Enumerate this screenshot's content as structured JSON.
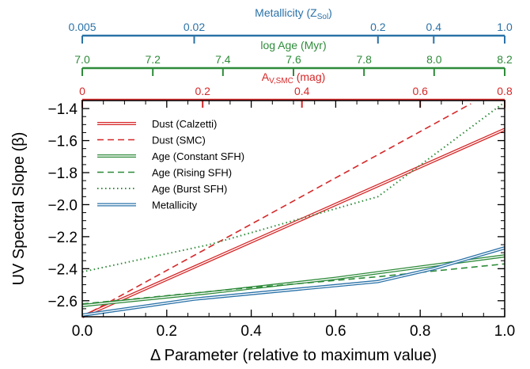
{
  "chart_data": {
    "type": "line",
    "xlabel": "Δ Parameter (relative to maximum value)",
    "ylabel": "UV Spectral Slope (β)",
    "xlim": [
      0,
      1
    ],
    "ylim": [
      -2.7,
      -1.35
    ],
    "x_ticks": [
      "0.0",
      "0.2",
      "0.4",
      "0.6",
      "0.8",
      "1.0"
    ],
    "y_ticks": [
      "-1.4",
      "-1.6",
      "-1.8",
      "-2.0",
      "-2.2",
      "-2.4",
      "-2.6"
    ],
    "grid": false,
    "legend_position": "top-left",
    "top_axes": [
      {
        "label_main": "Metallicity (Z",
        "label_sub": "Sol",
        "label_end": ")",
        "color": "#2a72a8",
        "ticks": [
          {
            "label": "0.005",
            "x": 0.0
          },
          {
            "label": "0.02",
            "x": 0.265
          },
          {
            "label": "0.2",
            "x": 0.7
          },
          {
            "label": "0.4",
            "x": 0.832
          },
          {
            "label": "1.0",
            "x": 1.0
          }
        ]
      },
      {
        "label_main": "log Age (Myr)",
        "color": "#2e8b3a",
        "ticks": [
          {
            "label": "7.0",
            "x": 0.0
          },
          {
            "label": "7.2",
            "x": 0.167
          },
          {
            "label": "7.4",
            "x": 0.333
          },
          {
            "label": "7.6",
            "x": 0.5
          },
          {
            "label": "7.8",
            "x": 0.667
          },
          {
            "label": "8.0",
            "x": 0.833
          },
          {
            "label": "8.2",
            "x": 1.0
          }
        ]
      },
      {
        "label_main": "A",
        "label_sub": "V,SMC",
        "label_end": " (mag)",
        "color": "#d62728",
        "ticks": [
          {
            "label": "0",
            "x": 0.0
          },
          {
            "label": "0.2",
            "x": 0.285
          },
          {
            "label": "0.4",
            "x": 0.52
          },
          {
            "label": "0.6",
            "x": 0.8
          },
          {
            "label": "0.8",
            "x": 1.0
          }
        ]
      }
    ],
    "series": [
      {
        "name": "Dust (Calzetti)",
        "color": "#d62728",
        "style": "double",
        "x": [
          0,
          1
        ],
        "y": [
          -2.7,
          -1.53
        ]
      },
      {
        "name": "Dust (SMC)",
        "color": "#d62728",
        "style": "dashed",
        "x": [
          0,
          0.92
        ],
        "y": [
          -2.7,
          -1.37
        ]
      },
      {
        "name": "Age (Constant SFH)",
        "color": "#2e8b3a",
        "style": "double",
        "x": [
          0,
          0.3,
          0.6,
          1.0
        ],
        "y": [
          -2.63,
          -2.55,
          -2.46,
          -2.32
        ]
      },
      {
        "name": "Age (Rising SFH)",
        "color": "#2e8b3a",
        "style": "dashed",
        "x": [
          0,
          0.35,
          0.7,
          1.0
        ],
        "y": [
          -2.62,
          -2.53,
          -2.45,
          -2.37
        ]
      },
      {
        "name": "Age (Burst SFH)",
        "color": "#2e8b3a",
        "style": "dotted",
        "x": [
          0,
          0.3,
          0.7,
          1.0
        ],
        "y": [
          -2.42,
          -2.25,
          -1.95,
          -1.36
        ]
      },
      {
        "name": "Metallicity",
        "color": "#2a72a8",
        "style": "double",
        "x": [
          0,
          0.265,
          0.7,
          0.832,
          1.0
        ],
        "y": [
          -2.69,
          -2.59,
          -2.48,
          -2.4,
          -2.27
        ]
      }
    ]
  }
}
